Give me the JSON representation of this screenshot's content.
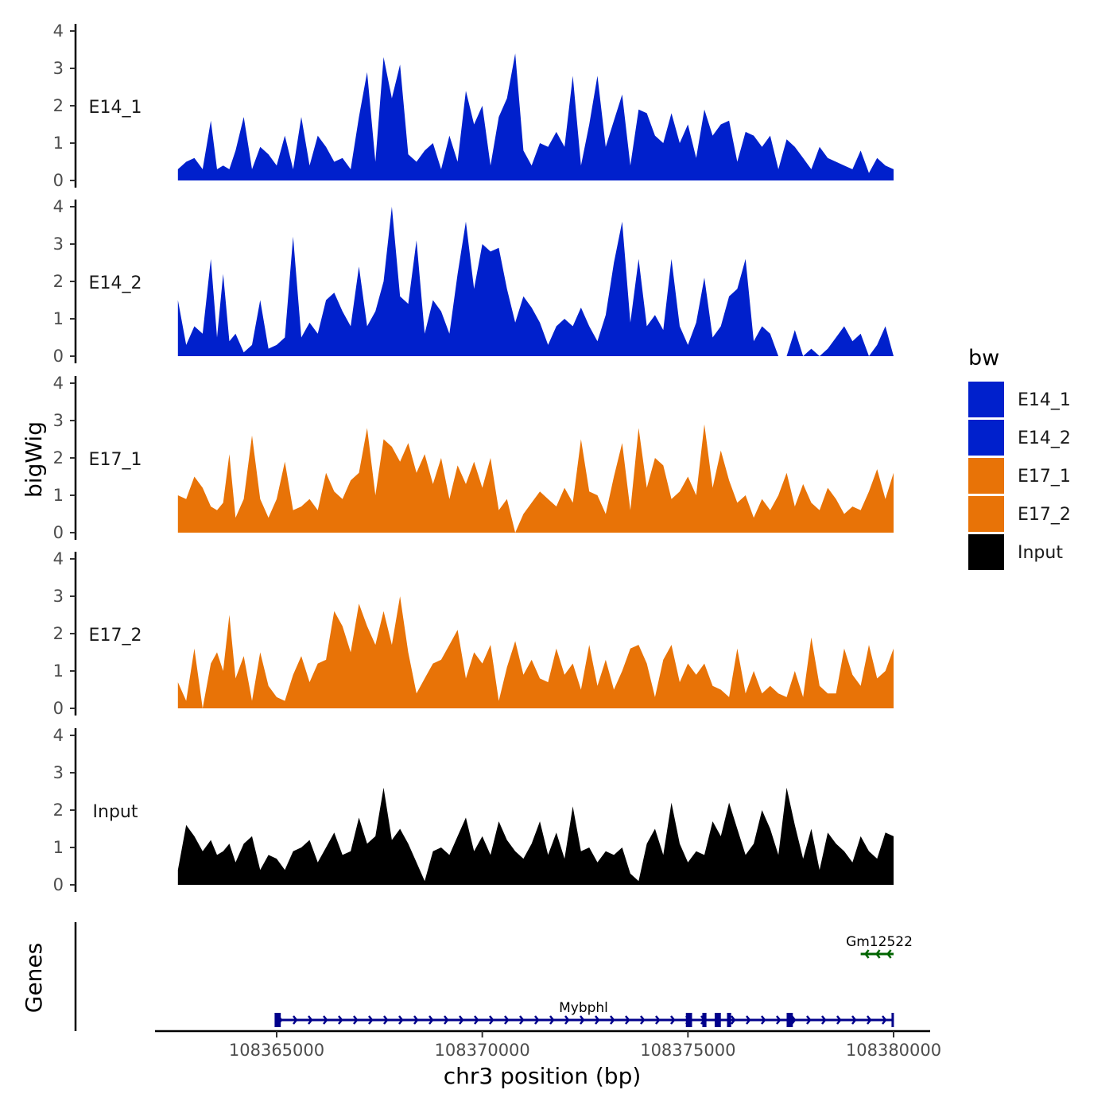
{
  "chart_data": {
    "type": "area",
    "region": {
      "chrom": "chr3",
      "start": 108362600,
      "end": 108380000
    },
    "ylim": [
      0,
      4
    ],
    "y_ticks": [
      0,
      1,
      2,
      3,
      4
    ],
    "x_ticks": [
      108365000,
      108370000,
      108375000,
      108380000
    ],
    "x_tick_labels": [
      "108365000",
      "108370000",
      "108375000",
      "108380000"
    ],
    "xlabel": "chr3 position (bp)",
    "ylabel": "bigWig",
    "genes_label": "Genes",
    "legend": {
      "title": "bw",
      "entries": [
        {
          "label": "E14_1",
          "color": "#0020cc"
        },
        {
          "label": "E14_2",
          "color": "#0020cc"
        },
        {
          "label": "E17_1",
          "color": "#e87307"
        },
        {
          "label": "E17_2",
          "color": "#e87307"
        },
        {
          "label": "Input",
          "color": "#000000"
        }
      ]
    },
    "series": [
      {
        "name": "E14_1",
        "color": "#0020cc",
        "x": [
          108362600,
          108362800,
          108363000,
          108363200,
          108363400,
          108363550,
          108363700,
          108363850,
          108364000,
          108364200,
          108364400,
          108364600,
          108364800,
          108365000,
          108365200,
          108365400,
          108365600,
          108365800,
          108366000,
          108366200,
          108366400,
          108366600,
          108366800,
          108367000,
          108367200,
          108367400,
          108367600,
          108367800,
          108368000,
          108368200,
          108368400,
          108368600,
          108368800,
          108369000,
          108369200,
          108369400,
          108369600,
          108369800,
          108370000,
          108370200,
          108370400,
          108370600,
          108370800,
          108371000,
          108371200,
          108371400,
          108371600,
          108371800,
          108372000,
          108372200,
          108372400,
          108372600,
          108372800,
          108373000,
          108373200,
          108373400,
          108373600,
          108373800,
          108374000,
          108374200,
          108374400,
          108374600,
          108374800,
          108375000,
          108375200,
          108375400,
          108375600,
          108375800,
          108376000,
          108376200,
          108376400,
          108376600,
          108376800,
          108377000,
          108377200,
          108377400,
          108377600,
          108377800,
          108378000,
          108378200,
          108378400,
          108378600,
          108378800,
          108379000,
          108379200,
          108379400,
          108379600,
          108379800,
          108380000
        ],
        "values": [
          0.3,
          0.5,
          0.6,
          0.3,
          1.6,
          0.3,
          0.4,
          0.3,
          0.8,
          1.7,
          0.3,
          0.9,
          0.7,
          0.4,
          1.2,
          0.3,
          1.7,
          0.4,
          1.2,
          0.9,
          0.5,
          0.6,
          0.3,
          1.7,
          2.9,
          0.5,
          3.3,
          2.2,
          3.1,
          0.7,
          0.5,
          0.8,
          1.0,
          0.3,
          1.2,
          0.5,
          2.4,
          1.5,
          2.0,
          0.4,
          1.7,
          2.2,
          3.4,
          0.8,
          0.4,
          1.0,
          0.9,
          1.3,
          0.9,
          2.8,
          0.4,
          1.5,
          2.8,
          0.9,
          1.6,
          2.3,
          0.4,
          1.9,
          1.8,
          1.2,
          1.0,
          1.8,
          1.0,
          1.5,
          0.6,
          1.9,
          1.2,
          1.5,
          1.6,
          0.5,
          1.3,
          1.2,
          0.9,
          1.2,
          0.3,
          1.1,
          0.9,
          0.6,
          0.3,
          0.9,
          0.6,
          0.5,
          0.4,
          0.3,
          0.8,
          0.2,
          0.6,
          0.4,
          0.3
        ]
      },
      {
        "name": "E14_2",
        "color": "#0020cc",
        "x": [
          108362600,
          108362800,
          108363000,
          108363200,
          108363400,
          108363550,
          108363700,
          108363850,
          108364000,
          108364200,
          108364400,
          108364600,
          108364800,
          108365000,
          108365200,
          108365400,
          108365600,
          108365800,
          108366000,
          108366200,
          108366400,
          108366600,
          108366800,
          108367000,
          108367200,
          108367400,
          108367600,
          108367800,
          108368000,
          108368200,
          108368400,
          108368600,
          108368800,
          108369000,
          108369200,
          108369400,
          108369600,
          108369800,
          108370000,
          108370200,
          108370400,
          108370600,
          108370800,
          108371000,
          108371200,
          108371400,
          108371600,
          108371800,
          108372000,
          108372200,
          108372400,
          108372600,
          108372800,
          108373000,
          108373200,
          108373400,
          108373600,
          108373800,
          108374000,
          108374200,
          108374400,
          108374600,
          108374800,
          108375000,
          108375200,
          108375400,
          108375600,
          108375800,
          108376000,
          108376200,
          108376400,
          108376600,
          108376800,
          108377000,
          108377200,
          108377400,
          108377600,
          108377800,
          108378000,
          108378200,
          108378400,
          108378600,
          108378800,
          108379000,
          108379200,
          108379400,
          108379600,
          108379800,
          108380000
        ],
        "values": [
          1.5,
          0.3,
          0.8,
          0.6,
          2.6,
          0.5,
          2.2,
          0.4,
          0.6,
          0.1,
          0.3,
          1.5,
          0.2,
          0.3,
          0.5,
          3.2,
          0.5,
          0.9,
          0.6,
          1.5,
          1.7,
          1.2,
          0.8,
          2.4,
          0.8,
          1.2,
          2.0,
          4.0,
          1.6,
          1.4,
          3.1,
          0.6,
          1.5,
          1.2,
          0.6,
          2.2,
          3.6,
          1.8,
          3.0,
          2.8,
          2.9,
          1.8,
          0.9,
          1.6,
          1.3,
          0.9,
          0.3,
          0.8,
          1.0,
          0.8,
          1.3,
          0.8,
          0.4,
          1.1,
          2.5,
          3.6,
          0.9,
          2.6,
          0.8,
          1.1,
          0.7,
          2.6,
          0.8,
          0.3,
          0.9,
          2.1,
          0.5,
          0.8,
          1.6,
          1.8,
          2.6,
          0.4,
          0.8,
          0.6,
          0.0,
          0.0,
          0.7,
          0.0,
          0.2,
          0.0,
          0.2,
          0.5,
          0.8,
          0.4,
          0.6,
          0.0,
          0.3,
          0.8,
          0.0
        ]
      },
      {
        "name": "E17_1",
        "color": "#e87307",
        "x": [
          108362600,
          108362800,
          108363000,
          108363200,
          108363400,
          108363550,
          108363700,
          108363850,
          108364000,
          108364200,
          108364400,
          108364600,
          108364800,
          108365000,
          108365200,
          108365400,
          108365600,
          108365800,
          108366000,
          108366200,
          108366400,
          108366600,
          108366800,
          108367000,
          108367200,
          108367400,
          108367600,
          108367800,
          108368000,
          108368200,
          108368400,
          108368600,
          108368800,
          108369000,
          108369200,
          108369400,
          108369600,
          108369800,
          108370000,
          108370200,
          108370400,
          108370600,
          108370800,
          108371000,
          108371200,
          108371400,
          108371600,
          108371800,
          108372000,
          108372200,
          108372400,
          108372600,
          108372800,
          108373000,
          108373200,
          108373400,
          108373600,
          108373800,
          108374000,
          108374200,
          108374400,
          108374600,
          108374800,
          108375000,
          108375200,
          108375400,
          108375600,
          108375800,
          108376000,
          108376200,
          108376400,
          108376600,
          108376800,
          108377000,
          108377200,
          108377400,
          108377600,
          108377800,
          108378000,
          108378200,
          108378400,
          108378600,
          108378800,
          108379000,
          108379200,
          108379400,
          108379600,
          108379800,
          108380000
        ],
        "values": [
          1.0,
          0.9,
          1.5,
          1.2,
          0.7,
          0.6,
          0.8,
          2.1,
          0.4,
          0.9,
          2.6,
          0.9,
          0.4,
          0.9,
          1.9,
          0.6,
          0.7,
          0.9,
          0.6,
          1.6,
          1.1,
          0.9,
          1.4,
          1.6,
          2.8,
          1.0,
          2.5,
          2.3,
          1.9,
          2.4,
          1.6,
          2.1,
          1.3,
          2.0,
          0.9,
          1.8,
          1.3,
          1.9,
          1.2,
          2.0,
          0.6,
          0.9,
          0.0,
          0.5,
          0.8,
          1.1,
          0.9,
          0.7,
          1.2,
          0.8,
          2.5,
          1.1,
          1.0,
          0.5,
          1.5,
          2.4,
          0.6,
          2.8,
          1.2,
          2.0,
          1.8,
          0.9,
          1.1,
          1.5,
          1.0,
          2.9,
          1.2,
          2.2,
          1.4,
          0.8,
          1.0,
          0.4,
          0.9,
          0.6,
          1.0,
          1.6,
          0.7,
          1.3,
          0.8,
          0.6,
          1.2,
          0.9,
          0.5,
          0.7,
          0.6,
          1.1,
          1.7,
          0.9,
          1.6
        ]
      },
      {
        "name": "E17_2",
        "color": "#e87307",
        "x": [
          108362600,
          108362800,
          108363000,
          108363200,
          108363400,
          108363550,
          108363700,
          108363850,
          108364000,
          108364200,
          108364400,
          108364600,
          108364800,
          108365000,
          108365200,
          108365400,
          108365600,
          108365800,
          108366000,
          108366200,
          108366400,
          108366600,
          108366800,
          108367000,
          108367200,
          108367400,
          108367600,
          108367800,
          108368000,
          108368200,
          108368400,
          108368600,
          108368800,
          108369000,
          108369200,
          108369400,
          108369600,
          108369800,
          108370000,
          108370200,
          108370400,
          108370600,
          108370800,
          108371000,
          108371200,
          108371400,
          108371600,
          108371800,
          108372000,
          108372200,
          108372400,
          108372600,
          108372800,
          108373000,
          108373200,
          108373400,
          108373600,
          108373800,
          108374000,
          108374200,
          108374400,
          108374600,
          108374800,
          108375000,
          108375200,
          108375400,
          108375600,
          108375800,
          108376000,
          108376200,
          108376400,
          108376600,
          108376800,
          108377000,
          108377200,
          108377400,
          108377600,
          108377800,
          108378000,
          108378200,
          108378400,
          108378600,
          108378800,
          108379000,
          108379200,
          108379400,
          108379600,
          108379800,
          108380000
        ],
        "values": [
          0.7,
          0.2,
          1.6,
          0.0,
          1.2,
          1.5,
          1.0,
          2.5,
          0.8,
          1.4,
          0.2,
          1.5,
          0.6,
          0.3,
          0.2,
          0.9,
          1.4,
          0.7,
          1.2,
          1.3,
          2.6,
          2.2,
          1.5,
          2.8,
          2.2,
          1.7,
          2.6,
          1.7,
          3.0,
          1.5,
          0.4,
          0.8,
          1.2,
          1.3,
          1.7,
          2.1,
          0.8,
          1.5,
          1.2,
          1.7,
          0.2,
          1.1,
          1.8,
          0.9,
          1.3,
          0.8,
          0.7,
          1.6,
          0.9,
          1.2,
          0.5,
          1.7,
          0.6,
          1.3,
          0.5,
          1.0,
          1.6,
          1.7,
          1.2,
          0.3,
          1.3,
          1.7,
          0.7,
          1.2,
          0.9,
          1.2,
          0.6,
          0.5,
          0.3,
          1.6,
          0.4,
          1.0,
          0.4,
          0.6,
          0.4,
          0.3,
          1.0,
          0.3,
          1.9,
          0.6,
          0.4,
          0.4,
          1.6,
          0.9,
          0.6,
          1.7,
          0.8,
          1.0,
          1.6
        ]
      },
      {
        "name": "Input",
        "color": "#000000",
        "x": [
          108362600,
          108362800,
          108363000,
          108363200,
          108363400,
          108363550,
          108363700,
          108363850,
          108364000,
          108364200,
          108364400,
          108364600,
          108364800,
          108365000,
          108365200,
          108365400,
          108365600,
          108365800,
          108366000,
          108366200,
          108366400,
          108366600,
          108366800,
          108367000,
          108367200,
          108367400,
          108367600,
          108367800,
          108368000,
          108368200,
          108368400,
          108368600,
          108368800,
          108369000,
          108369200,
          108369400,
          108369600,
          108369800,
          108370000,
          108370200,
          108370400,
          108370600,
          108370800,
          108371000,
          108371200,
          108371400,
          108371600,
          108371800,
          108372000,
          108372200,
          108372400,
          108372600,
          108372800,
          108373000,
          108373200,
          108373400,
          108373600,
          108373800,
          108374000,
          108374200,
          108374400,
          108374600,
          108374800,
          108375000,
          108375200,
          108375400,
          108375600,
          108375800,
          108376000,
          108376200,
          108376400,
          108376600,
          108376800,
          108377000,
          108377200,
          108377400,
          108377600,
          108377800,
          108378000,
          108378200,
          108378400,
          108378600,
          108378800,
          108379000,
          108379200,
          108379400,
          108379600,
          108379800,
          108380000
        ],
        "values": [
          0.4,
          1.6,
          1.3,
          0.9,
          1.2,
          0.8,
          0.9,
          1.1,
          0.6,
          1.1,
          1.3,
          0.4,
          0.8,
          0.7,
          0.4,
          0.9,
          1.0,
          1.2,
          0.6,
          1.0,
          1.4,
          0.8,
          0.9,
          1.8,
          1.1,
          1.3,
          2.6,
          1.2,
          1.5,
          1.1,
          0.6,
          0.1,
          0.9,
          1.0,
          0.8,
          1.3,
          1.8,
          0.9,
          1.3,
          0.8,
          1.7,
          1.2,
          0.9,
          0.7,
          1.1,
          1.7,
          0.8,
          1.4,
          0.7,
          2.1,
          0.9,
          1.0,
          0.6,
          0.9,
          0.8,
          1.0,
          0.3,
          0.1,
          1.1,
          1.5,
          0.8,
          2.2,
          1.1,
          0.6,
          0.9,
          0.8,
          1.7,
          1.3,
          2.2,
          1.5,
          0.8,
          1.1,
          2.0,
          1.5,
          0.8,
          2.6,
          1.6,
          0.7,
          1.5,
          0.4,
          1.4,
          1.1,
          0.9,
          0.6,
          1.3,
          0.9,
          0.7,
          1.4,
          1.3
        ]
      }
    ],
    "genes": [
      {
        "name": "Mybphl",
        "start": 108365000,
        "end": 108380000,
        "strand": "+",
        "color": "#00008b",
        "row": "lower",
        "exons": [
          [
            108364950,
            108365100
          ],
          [
            108374950,
            108375100
          ],
          [
            108375350,
            108375450
          ],
          [
            108375650,
            108375800
          ],
          [
            108375950,
            108376050
          ],
          [
            108377400,
            108377550
          ],
          [
            108379950,
            108380000
          ]
        ]
      },
      {
        "name": "Gm12522",
        "start": 108379200,
        "end": 108380000,
        "strand": "-",
        "color": "#006400",
        "row": "upper",
        "exons": []
      }
    ]
  }
}
